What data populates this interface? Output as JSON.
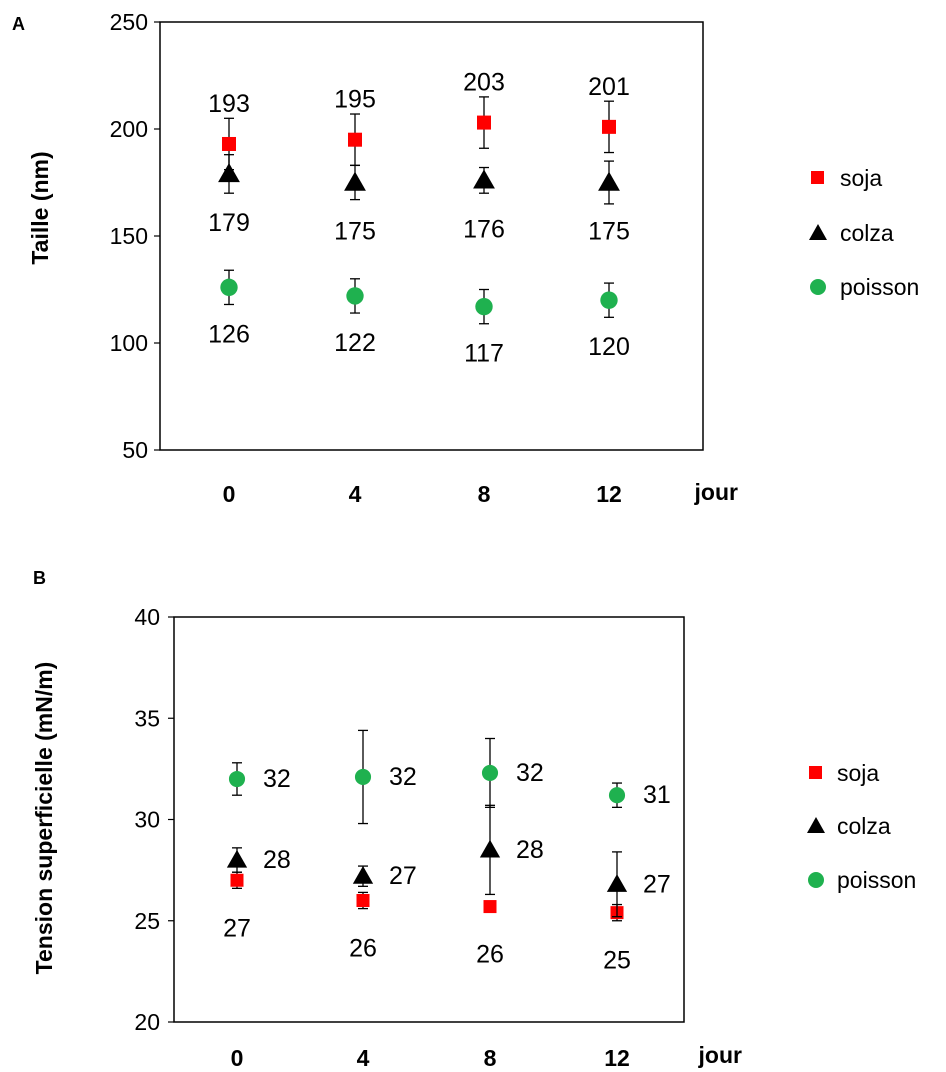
{
  "chart_data": [
    {
      "panel": "A",
      "type": "scatter",
      "ylabel": "Taille (nm)",
      "xunit": "jour",
      "x": [
        0,
        4,
        8,
        12
      ],
      "x_tick_labels": [
        "0",
        "4",
        "8",
        "12"
      ],
      "ylim": [
        50,
        250
      ],
      "y_ticks": [
        50,
        100,
        150,
        200,
        250
      ],
      "grid": false,
      "legend_position": "right",
      "series": [
        {
          "name": "soja",
          "marker": "square",
          "color": "#ff0000",
          "values": [
            193,
            195,
            203,
            201
          ],
          "errors": [
            12,
            12,
            12,
            12
          ],
          "labels": [
            "193",
            "195",
            "203",
            "201"
          ]
        },
        {
          "name": "colza",
          "marker": "triangle",
          "color": "#000000",
          "values": [
            179,
            175,
            176,
            175
          ],
          "errors": [
            9,
            8,
            6,
            10
          ],
          "labels": [
            "179",
            "175",
            "176",
            "175"
          ]
        },
        {
          "name": "poisson",
          "marker": "circle",
          "color": "#1fb14f",
          "values": [
            126,
            122,
            117,
            120
          ],
          "errors": [
            8,
            8,
            8,
            8
          ],
          "labels": [
            "126",
            "122",
            "117",
            "120"
          ]
        }
      ]
    },
    {
      "panel": "B",
      "type": "scatter",
      "ylabel": "Tension superficielle (mN/m)",
      "xunit": "jour",
      "x": [
        0,
        4,
        8,
        12
      ],
      "x_tick_labels": [
        "0",
        "4",
        "8",
        "12"
      ],
      "ylim": [
        20,
        40
      ],
      "y_ticks": [
        20,
        25,
        30,
        35,
        40
      ],
      "grid": false,
      "legend_position": "right",
      "series": [
        {
          "name": "soja",
          "marker": "square",
          "color": "#ff0000",
          "values": [
            27,
            26,
            25.7,
            25.4
          ],
          "errors": [
            0.4,
            0.4,
            0.2,
            0.4
          ],
          "labels": [
            "27",
            "26",
            "26",
            "25"
          ]
        },
        {
          "name": "colza",
          "marker": "triangle",
          "color": "#000000",
          "values": [
            28,
            27.2,
            28.5,
            26.8
          ],
          "errors": [
            0.6,
            0.5,
            2.2,
            1.6
          ],
          "labels": [
            "28",
            "27",
            "28",
            "27"
          ]
        },
        {
          "name": "poisson",
          "marker": "circle",
          "color": "#1fb14f",
          "values": [
            32,
            32.1,
            32.3,
            31.2
          ],
          "errors": [
            0.8,
            2.3,
            1.7,
            0.6
          ],
          "labels": [
            "32",
            "32",
            "32",
            "31"
          ]
        }
      ]
    }
  ]
}
